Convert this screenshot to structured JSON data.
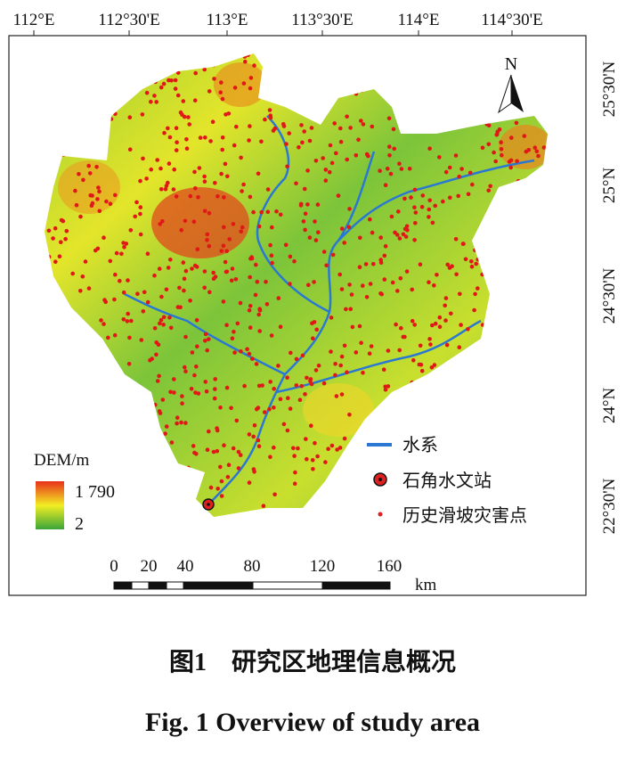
{
  "map": {
    "lon_labels": [
      "112°E",
      "112°30'E",
      "113°E",
      "113°30'E",
      "114°E",
      "114°30'E"
    ],
    "lat_labels": [
      "25°30'N",
      "25°N",
      "24°30'N",
      "24°N",
      "22°30'N"
    ],
    "north": "N",
    "legend": {
      "dem_title": "DEM/m",
      "dem_max": "1 790",
      "dem_min": "2",
      "items": [
        "水系",
        "石角水文站",
        "历史滑坡灾害点"
      ]
    },
    "scale": {
      "labels": [
        "0",
        "20",
        "40",
        "80",
        "120",
        "160"
      ],
      "unit": "km"
    }
  },
  "caption": {
    "zh": "图1　研究区地理信息概况",
    "en": "Fig. 1 Overview of study area"
  }
}
